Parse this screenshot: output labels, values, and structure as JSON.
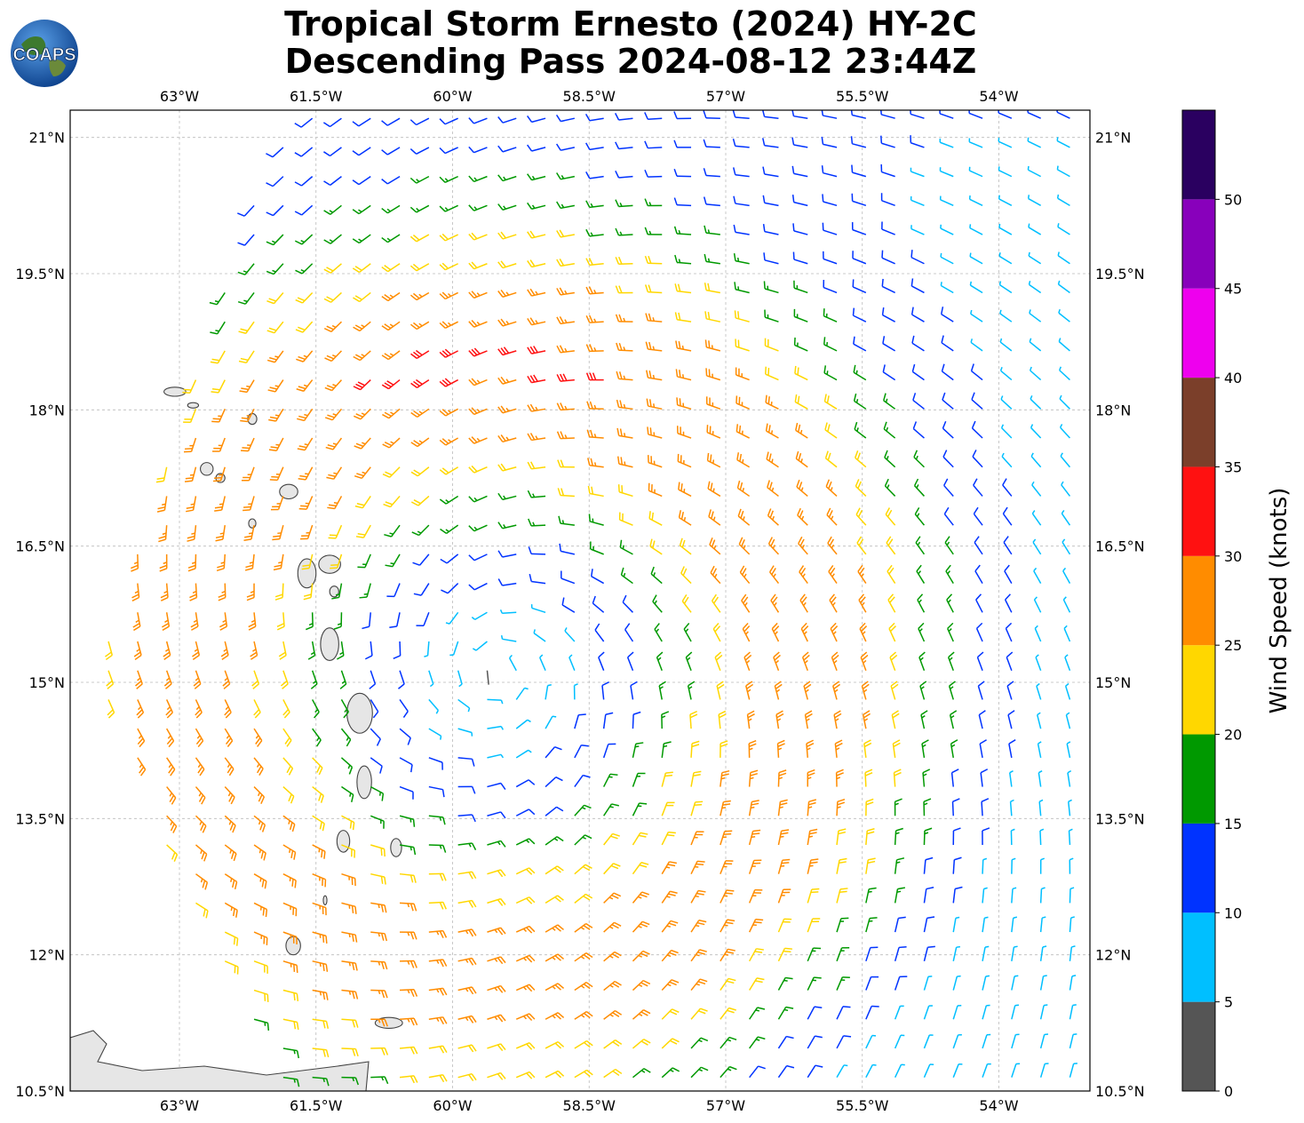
{
  "title": {
    "line1": "Tropical Storm Ernesto (2024) HY-2C",
    "line2": "Descending Pass 2024-08-12 23:44Z"
  },
  "logo": {
    "text": "COAPS",
    "icon": "globe-icon"
  },
  "map": {
    "lon_range": [
      -64.2,
      -53.0
    ],
    "lat_range": [
      10.5,
      21.3
    ],
    "lon_ticks": [
      "63°W",
      "61.5°W",
      "60°W",
      "58.5°W",
      "57°W",
      "55.5°W",
      "54°W"
    ],
    "lat_ticks": [
      "21°N",
      "19.5°N",
      "18°N",
      "16.5°N",
      "15°N",
      "13.5°N",
      "12°N",
      "10.5°N"
    ],
    "gridlines": true,
    "storm_center": {
      "lon": -59.5,
      "lat": 15.1
    }
  },
  "colorbar": {
    "title": "Wind Speed (knots)",
    "ticks": [
      "0",
      "5",
      "10",
      "15",
      "20",
      "25",
      "30",
      "35",
      "40",
      "45",
      "50"
    ],
    "colors": [
      "#555555",
      "#00bfff",
      "#0033ff",
      "#009900",
      "#ffd700",
      "#ff8c00",
      "#ff1111",
      "#7b3f2a",
      "#ee00ee",
      "#8800bb",
      "#2a0060"
    ]
  }
}
